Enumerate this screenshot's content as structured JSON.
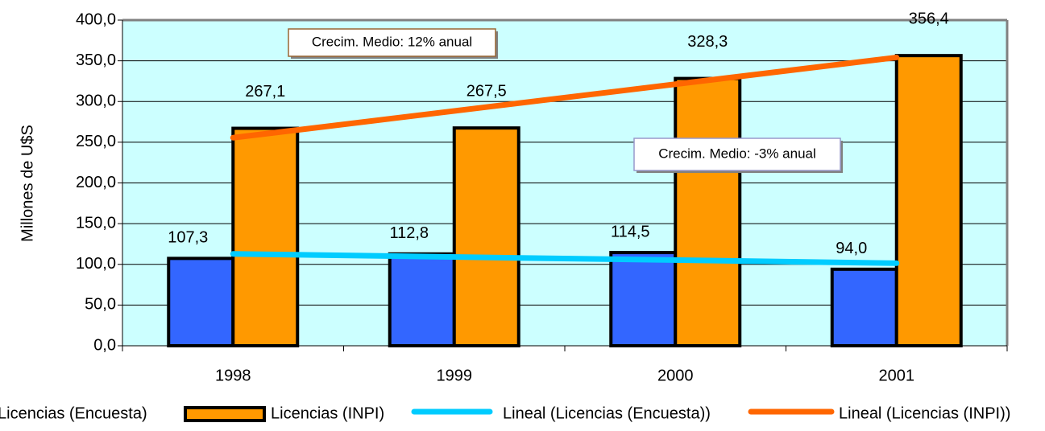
{
  "chart_data": {
    "type": "bar",
    "categories": [
      "1998",
      "1999",
      "2000",
      "2001"
    ],
    "series": [
      {
        "name": "Licencias (Encuesta)",
        "color": "#3366ff",
        "values": [
          107.3,
          112.8,
          114.5,
          94.0
        ],
        "value_labels": [
          "107,3",
          "112,8",
          "114,5",
          "94,0"
        ],
        "trendline": {
          "name": "Lineal (Licencias (Encuesta))",
          "color": "#00ccff"
        }
      },
      {
        "name": "Licencias (INPI)",
        "color": "#ff9900",
        "values": [
          267.1,
          267.5,
          328.3,
          356.4
        ],
        "value_labels": [
          "267,1",
          "267,5",
          "328,3",
          "356,4"
        ],
        "trendline": {
          "name": "Lineal (Licencias (INPI))",
          "color": "#ff6600"
        }
      }
    ],
    "y_label": "Millones de U$S",
    "ylim": [
      0,
      400
    ],
    "yticks": [
      {
        "value": 0,
        "label": "0,0"
      },
      {
        "value": 50,
        "label": "50,0"
      },
      {
        "value": 100,
        "label": "100,0"
      },
      {
        "value": 150,
        "label": "150,0"
      },
      {
        "value": 200,
        "label": "200,0"
      },
      {
        "value": 250,
        "label": "250,0"
      },
      {
        "value": 300,
        "label": "300,0"
      },
      {
        "value": 350,
        "label": "350,0"
      },
      {
        "value": 400,
        "label": "400,0"
      }
    ],
    "grid": true,
    "legend": "bottom",
    "annotations": [
      "Crecim. Medio: 12% anual",
      "Crecim. Medio: -3% anual"
    ]
  }
}
